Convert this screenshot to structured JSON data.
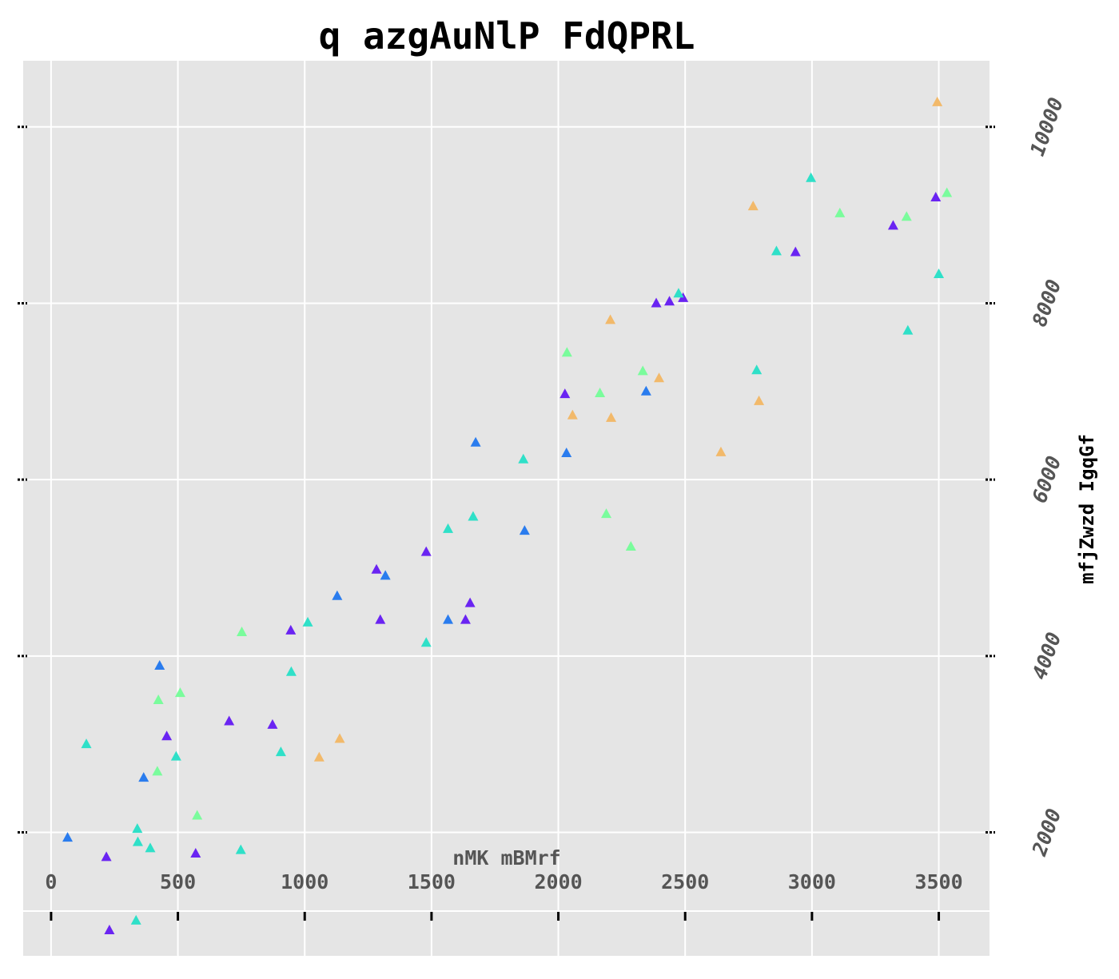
{
  "chart_data": {
    "type": "scatter",
    "title": "q  azgAuNlP FdQPRL",
    "xlabel": "nMK mBMrf",
    "ylabel": "mfjZwzd  IgqGf",
    "xlim": [
      -110,
      3700
    ],
    "ylim": [
      600,
      10750
    ],
    "xticks": [
      "0",
      "500",
      "1000",
      "1500",
      "2000",
      "2500",
      "3000",
      "3500"
    ],
    "yticks": [
      "2000",
      "4000",
      "6000",
      "8000",
      "10000"
    ],
    "grid": true,
    "marker": "triangle",
    "colors": [
      "#6a24f2",
      "#2a7cee",
      "#2fe0c8",
      "#7afc9c",
      "#f2b96a"
    ],
    "series": [
      {
        "color": "#6a24f2",
        "x": [
          218,
          570,
          456,
          702,
          873,
          945,
          1298,
          1283,
          1479,
          1634,
          1652,
          2026,
          2386,
          2438,
          2492,
          2935,
          3320,
          3488,
          230
        ],
        "y": [
          1720,
          1760,
          3090,
          3260,
          3220,
          4290,
          4410,
          4980,
          5180,
          4410,
          4600,
          6970,
          8000,
          8020,
          8060,
          8580,
          8880,
          9200,
          890
        ]
      },
      {
        "color": "#2a7cee",
        "x": [
          65,
          365,
          428,
          1128,
          1318,
          1565,
          1674,
          1867,
          2032,
          2346
        ],
        "y": [
          1940,
          2620,
          3890,
          4680,
          4910,
          4410,
          6420,
          5420,
          6300,
          7000
        ]
      },
      {
        "color": "#2fe0c8",
        "x": [
          139,
          340,
          342,
          391,
          493,
          748,
          906,
          947,
          1012,
          1479,
          1565,
          1664,
          1862,
          2474,
          2782,
          2860,
          2996,
          3378,
          3500,
          335
        ],
        "y": [
          3000,
          2040,
          1890,
          1820,
          2860,
          1800,
          2910,
          3820,
          4380,
          4150,
          5440,
          5580,
          6230,
          8110,
          7240,
          8590,
          9420,
          7690,
          8330,
          1000
        ]
      },
      {
        "color": "#7afc9c",
        "x": [
          419,
          423,
          509,
          576,
          752,
          2034,
          2164,
          2189,
          2286,
          2333,
          3110,
          3373,
          3532
        ],
        "y": [
          2690,
          3500,
          3580,
          2190,
          4270,
          7440,
          6980,
          5610,
          5240,
          7230,
          9020,
          8980,
          9250
        ]
      },
      {
        "color": "#f2b96a",
        "x": [
          1057,
          1138,
          2056,
          2205,
          2208,
          2397,
          2641,
          2768,
          2791,
          3494
        ],
        "y": [
          2850,
          3060,
          6730,
          7810,
          6700,
          7150,
          6310,
          9100,
          6890,
          10280
        ]
      }
    ]
  }
}
